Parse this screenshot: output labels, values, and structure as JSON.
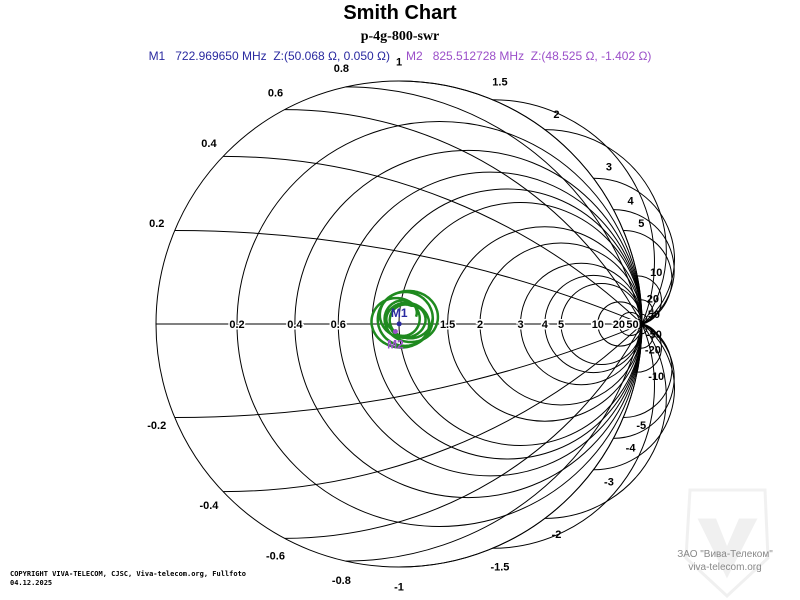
{
  "chart_data": {
    "type": "smith",
    "title": "Smith Chart",
    "subtitle": "p-4g-800-swr",
    "reference_impedance_ohm": 50,
    "resistance_labels": [
      "0.2",
      "0.4",
      "0.6",
      "0.8",
      "1",
      "1.5",
      "2",
      "3",
      "4",
      "5",
      "10",
      "20",
      "50"
    ],
    "resistance_values": [
      0.2,
      0.4,
      0.6,
      0.8,
      1,
      1.5,
      2,
      3,
      4,
      5,
      10,
      20,
      50
    ],
    "reactance_values": [
      0.2,
      0.4,
      0.6,
      0.8,
      1,
      1.5,
      2,
      3,
      4,
      5,
      10,
      20,
      50,
      -0.2,
      -0.4,
      -0.6,
      -0.8,
      -1,
      -1.5,
      -2,
      -3,
      -4,
      -5,
      -10,
      -20,
      -50
    ],
    "reactance_labels": [
      "0.2",
      "0.4",
      "0.6",
      "0.8",
      "1",
      "1.5",
      "2",
      "3",
      "4",
      "5",
      "10",
      "20",
      "50",
      "-0.2",
      "-0.4",
      "-0.6",
      "-0.8",
      "-1",
      "-1.5",
      "-2",
      "-3",
      "-4",
      "-5",
      "-10",
      "-20",
      "-50"
    ],
    "trace_color": "#1f8a1f",
    "markers": [
      {
        "name": "M1",
        "freq": "722.969650 MHz",
        "z": "Z:(50.068 Ω, 0.050 Ω)",
        "r_ohm": 50.068,
        "x_ohm": 0.05,
        "color": "#2a2aa0"
      },
      {
        "name": "M2",
        "freq": "825.512728 MHz",
        "z": "Z:(48.525 Ω, -1.402 Ω)",
        "r_ohm": 48.525,
        "x_ohm": -1.402,
        "color": "#9b4fc9"
      }
    ]
  },
  "footer": {
    "copyright": "COPYRIGHT VIVA-TELECOM, CJSC, Viva-telecom.org, Fullfoto",
    "date": "04.12.2025",
    "watermark_company": "ЗАО \"Вива-Телеком\"",
    "watermark_url": "viva-telecom.org"
  }
}
